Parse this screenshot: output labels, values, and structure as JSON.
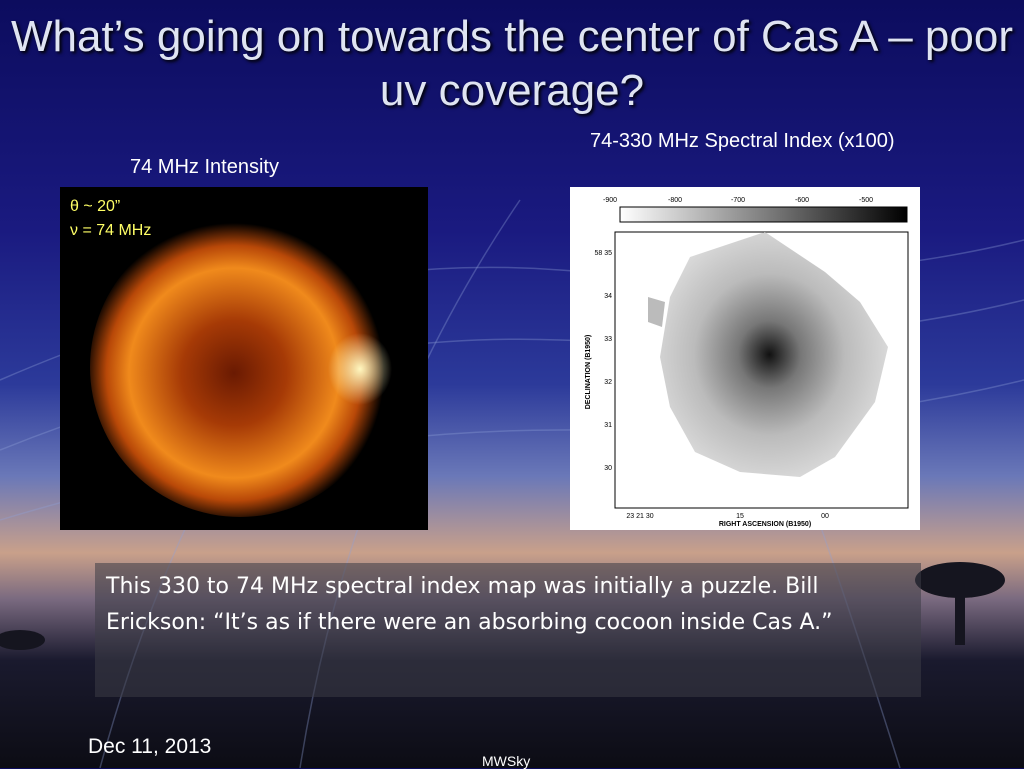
{
  "slide": {
    "title": "What’s going on towards the center of Cas A – poor uv coverage?",
    "left_panel": {
      "caption": "74 MHz Intensity",
      "annotations": [
        "θ ~ 20”",
        "ν = 74 MHz"
      ]
    },
    "right_panel": {
      "caption": "74-330 MHz Spectral Index (x100)",
      "colorbar_labels": [
        "-900",
        "-800",
        "-700",
        "-600",
        "-500"
      ],
      "y_axis_title": "DECLINATION (B1950)",
      "y_tick_labels": [
        "58 35",
        "34",
        "33",
        "32",
        "31",
        "30"
      ],
      "x_tick_labels": [
        "23 21 30",
        "15",
        "00"
      ],
      "x_axis_title": "RIGHT ASCENSION (B1950)"
    },
    "body": "This 330 to 74 MHz spectral index map was initially a puzzle. Bill Erickson: “It’s as if there were an absorbing cocoon inside Cas A.”",
    "date": "Dec 11, 2013",
    "footer": "MWSky"
  }
}
